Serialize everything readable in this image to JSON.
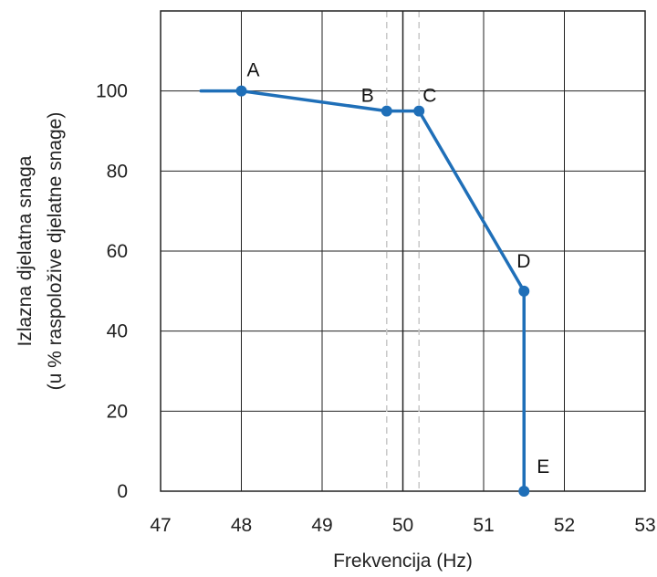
{
  "chart_data": {
    "type": "line",
    "xlabel": "Frekvencija (Hz)",
    "ylabel": [
      "Izlazna djelatna snaga",
      "(u % raspoložive djelatne snage)"
    ],
    "xlim": [
      47,
      53
    ],
    "ylim": [
      0,
      120
    ],
    "x_ticks": [
      "47",
      "48",
      "49",
      "50",
      "51",
      "52",
      "53"
    ],
    "y_ticks": [
      "0",
      "20",
      "40",
      "60",
      "80",
      "100"
    ],
    "grid": true,
    "reference_lines": {
      "solid_x": [
        50
      ],
      "dashed_x": [
        49.8,
        50.2
      ]
    },
    "series": [
      {
        "x": [
          47.5,
          48,
          49.8,
          50.2,
          51.5,
          51.5
        ],
        "y": [
          100,
          100,
          95,
          95,
          50,
          0
        ],
        "color": "#1f6fb8"
      }
    ],
    "points": [
      {
        "label": "A",
        "x": 48,
        "y": 100
      },
      {
        "label": "B",
        "x": 49.8,
        "y": 95
      },
      {
        "label": "C",
        "x": 50.2,
        "y": 95
      },
      {
        "label": "D",
        "x": 51.5,
        "y": 50
      },
      {
        "label": "E",
        "x": 51.5,
        "y": 0
      }
    ]
  }
}
